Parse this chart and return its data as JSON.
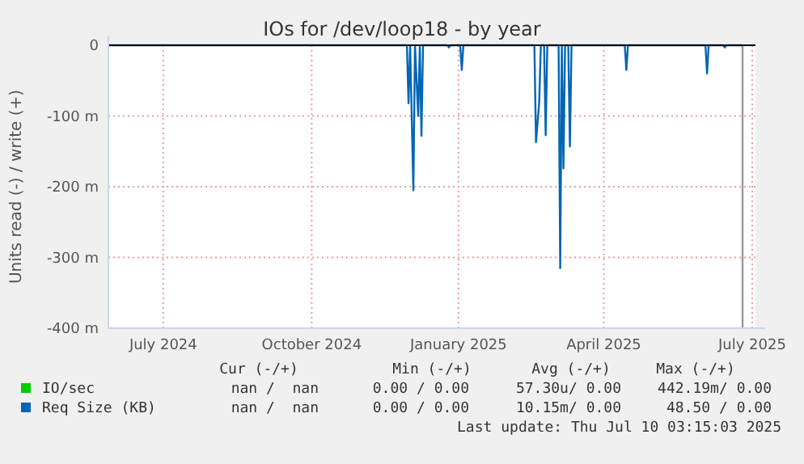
{
  "chart_data": {
    "type": "line",
    "title": "IOs for /dev/loop18 - by year",
    "ylabel": "Units read (-) / write (+)",
    "xlim": [
      "2024-06-08",
      "2025-07-14"
    ],
    "xticks": [
      {
        "value": "2024-07-12",
        "label": "July 2024"
      },
      {
        "value": "2024-10-12",
        "label": "October 2024"
      },
      {
        "value": "2025-01-11",
        "label": "January 2025"
      },
      {
        "value": "2025-04-11",
        "label": "April 2025"
      },
      {
        "value": "2025-07-12",
        "label": "July 2025"
      }
    ],
    "ylim": [
      -400,
      0
    ],
    "yticks": [
      {
        "value": -400,
        "label": "-400 m"
      },
      {
        "value": -300,
        "label": "-300 m"
      },
      {
        "value": -200,
        "label": "-200 m"
      },
      {
        "value": -100,
        "label": "-100 m"
      },
      0
    ],
    "grid": true,
    "legend": "bottom",
    "series": [
      {
        "name": "IO/sec",
        "color": "#00cc00"
      },
      {
        "name": "Req Size (KB)",
        "color": "#0066b3",
        "x": [
          "2024-06-08",
          "2024-12-10",
          "2024-12-11",
          "2024-12-12",
          "2024-12-14",
          "2024-12-15",
          "2024-12-17",
          "2024-12-18",
          "2024-12-19",
          "2024-12-20",
          "2025-01-04",
          "2025-01-05",
          "2025-01-06",
          "2025-01-12",
          "2025-01-13",
          "2025-01-14",
          "2025-02-27",
          "2025-02-28",
          "2025-03-02",
          "2025-03-03",
          "2025-03-05",
          "2025-03-06",
          "2025-03-07",
          "2025-03-14",
          "2025-03-15",
          "2025-03-16",
          "2025-03-17",
          "2025-03-18",
          "2025-03-20",
          "2025-03-21",
          "2025-03-22",
          "2025-04-24",
          "2025-04-25",
          "2025-04-26",
          "2025-06-13",
          "2025-06-14",
          "2025-06-15",
          "2025-06-24",
          "2025-06-25",
          "2025-06-26",
          "2025-07-06"
        ],
        "values": [
          0,
          0,
          -82,
          0,
          -205,
          0,
          -100,
          0,
          -128,
          0,
          0,
          -3,
          0,
          0,
          -35,
          0,
          0,
          -137,
          -80,
          0,
          0,
          -127,
          0,
          0,
          -315,
          0,
          -174,
          0,
          0,
          -143,
          0,
          0,
          -35,
          0,
          0,
          -40,
          0,
          0,
          -3,
          0,
          0
        ]
      }
    ],
    "ref_lines": [
      {
        "axis": "x",
        "value": "2025-07-06",
        "color": "#999999"
      }
    ],
    "annotations": [
      "Cur (-/+)",
      "Min (-/+)",
      "Avg (-/+)",
      "Max (-/+)",
      "nan /  nan",
      "0.00 / 0.00",
      "57.30u/ 0.00",
      "442.19m/ 0.00",
      "nan /  nan",
      "0.00 / 0.00",
      "10.15m/ 0.00",
      "48.50 / 0.00",
      "Last update: Thu Jul 10 03:15:03 2025"
    ]
  }
}
